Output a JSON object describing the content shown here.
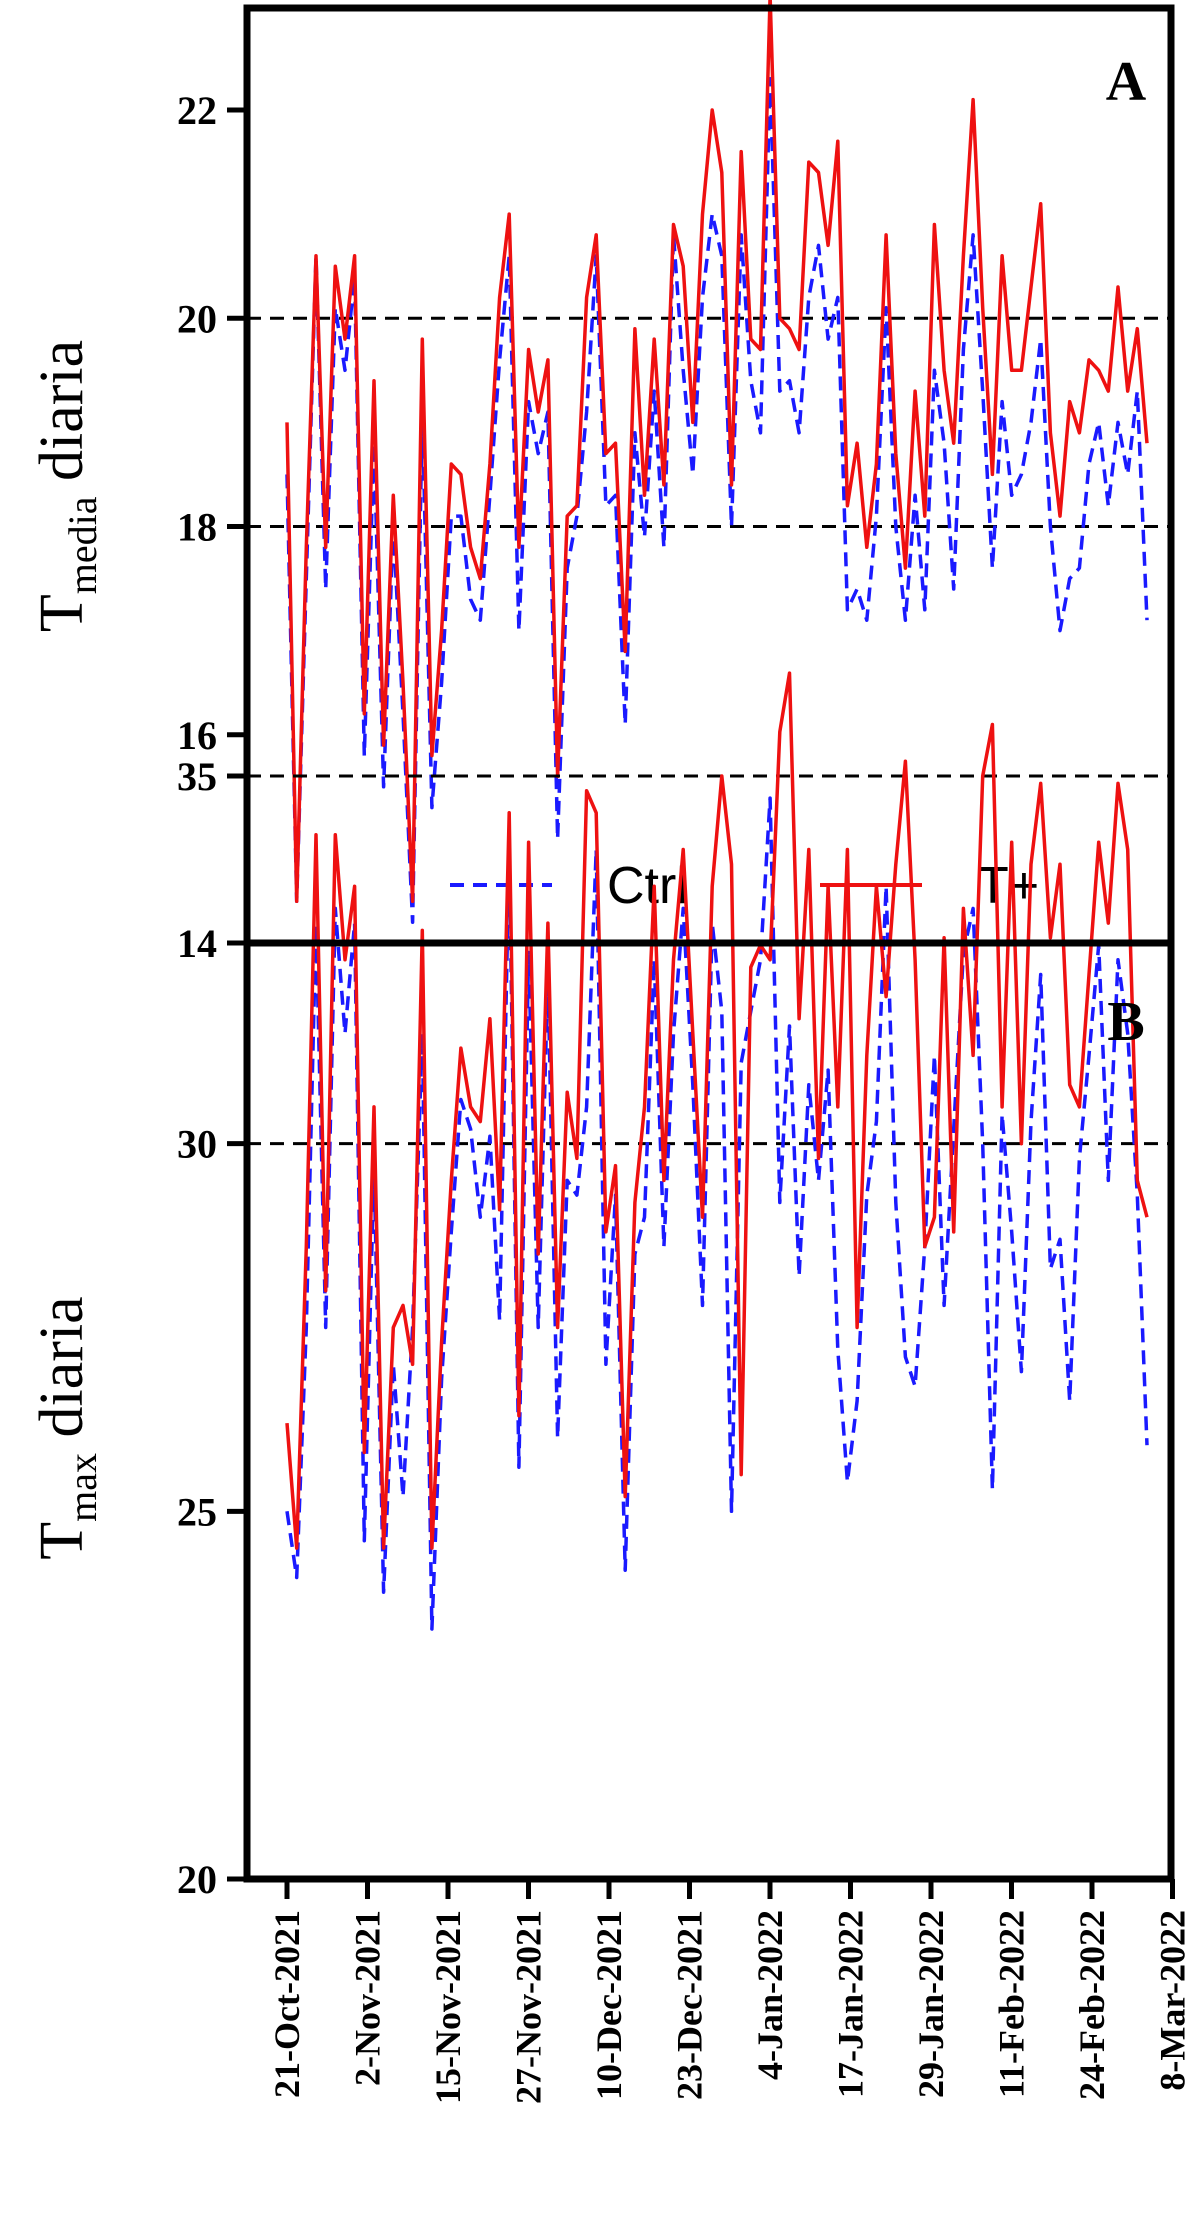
{
  "chart_data": [
    {
      "panel": "A",
      "type": "line",
      "ylabel": "T",
      "ylabel_sub": "media",
      "ylabel_rest": " diaria",
      "ylim": [
        14,
        23.5
      ],
      "yticks": [
        "14",
        "16",
        "18",
        "20",
        "22"
      ],
      "reference_lines": [
        18,
        20
      ],
      "legend": {
        "position": "bottom-center",
        "entries": [
          "Ctrl",
          "T+"
        ]
      },
      "series": [
        {
          "name": "Ctrl",
          "color": "#1a1aff",
          "style": "dashed",
          "values": [
            18.5,
            14.4,
            17.5,
            20.6,
            17.4,
            20.1,
            19.5,
            20.4,
            15.8,
            18.8,
            15.5,
            18,
            16.2,
            14.2,
            19.1,
            15.3,
            16.5,
            18.1,
            18.1,
            17.3,
            17.1,
            18.3,
            19.6,
            20.6,
            17,
            19.2,
            18.7,
            19.1,
            15,
            17.6,
            18.1,
            19.1,
            20.6,
            18.2,
            18.3,
            16.1,
            18.9,
            17.9,
            19.3,
            17.8,
            20.8,
            19.5,
            18.5,
            20.2,
            21,
            20.6,
            18,
            20.8,
            19.4,
            18.9,
            22.3,
            19.3,
            19.4,
            18.9,
            20.2,
            20.7,
            19.8,
            20.2,
            17.2,
            17.4,
            17.1,
            18.1,
            20.1,
            18,
            17.1,
            18.3,
            17.2,
            19.5,
            18.8,
            17.4,
            19.7,
            20.8,
            19.3,
            17.6,
            19.2,
            18.3,
            18.5,
            19,
            19.8,
            18,
            17,
            17.5,
            17.6,
            18.6,
            19,
            18.2,
            19,
            18.5,
            19.3,
            17.1
          ]
        },
        {
          "name": "T+",
          "color": "#ee1111",
          "style": "solid",
          "values": [
            19,
            14.4,
            17.8,
            20.6,
            17.8,
            20.5,
            19.8,
            20.6,
            16.2,
            19.4,
            15.9,
            18.3,
            16.5,
            14.4,
            19.8,
            15.8,
            17,
            18.6,
            18.5,
            17.8,
            17.5,
            18.6,
            20.2,
            21,
            17.8,
            19.7,
            19.1,
            19.6,
            15.6,
            18.1,
            18.2,
            20.2,
            20.8,
            18.7,
            18.8,
            16.8,
            19.9,
            18.3,
            19.8,
            18.4,
            20.9,
            20.5,
            19,
            21,
            22,
            21.4,
            18.4,
            21.6,
            19.8,
            19.7,
            23.1,
            20,
            19.9,
            19.7,
            21.5,
            21.4,
            20.7,
            21.7,
            18.2,
            18.8,
            17.8,
            18.6,
            20.8,
            18.7,
            17.6,
            19.3,
            18.1,
            20.9,
            19.5,
            18.8,
            20.6,
            22.1,
            20.1,
            18.5,
            20.6,
            19.5,
            19.5,
            20.3,
            21.1,
            18.9,
            18.1,
            19.2,
            18.9,
            19.6,
            19.5,
            19.3,
            20.3,
            19.3,
            19.9,
            18.8
          ]
        }
      ]
    },
    {
      "panel": "B",
      "type": "line",
      "ylabel": "T",
      "ylabel_sub": "max",
      "ylabel_rest": " diaria",
      "ylim": [
        20,
        37
      ],
      "yticks": [
        "20",
        "25",
        "30",
        "35"
      ],
      "reference_lines": [
        30,
        35
      ],
      "xticks": [
        "21-Oct-2021",
        "2-Nov-2021",
        "15-Nov-2021",
        "27-Nov-2021",
        "10-Dec-2021",
        "23-Dec-2021",
        "4-Jan-2022",
        "17-Jan-2022",
        "29-Jan-2022",
        "11-Feb-2022",
        "24-Feb-2022",
        "8-Mar-2022"
      ],
      "series": [
        {
          "name": "Ctrl",
          "color": "#1a1aff",
          "style": "dashed",
          "values": [
            25,
            24.1,
            27.5,
            33,
            27.5,
            33.2,
            31.5,
            33,
            24.6,
            29.7,
            23.9,
            27,
            25.2,
            27.5,
            31.5,
            23.4,
            26.8,
            28.8,
            30.6,
            30.2,
            29,
            30.1,
            27.6,
            34,
            25.6,
            32.6,
            27.5,
            32.3,
            26,
            29.5,
            29.3,
            30.5,
            34,
            27,
            29.3,
            24.2,
            28.5,
            29,
            32.5,
            28.6,
            31.5,
            33.2,
            30.8,
            27.8,
            33,
            31.8,
            25,
            31.1,
            31.8,
            32.5,
            34.7,
            29.2,
            31.6,
            28.2,
            30.8,
            29.5,
            31,
            27.2,
            25.4,
            26.5,
            29.3,
            30.3,
            33.5,
            29.2,
            27.1,
            26.7,
            28.6,
            31.2,
            27.8,
            30.2,
            32.6,
            33.2,
            30,
            25.3,
            30.4,
            28.8,
            26.9,
            30.3,
            32.3,
            28.3,
            28.7,
            26.5,
            29.8,
            31.2,
            32.7,
            29.5,
            32.5,
            31.5,
            29.3,
            25.9
          ]
        },
        {
          "name": "T+",
          "color": "#ee1111",
          "style": "solid",
          "values": [
            26.2,
            24.5,
            28.6,
            34.2,
            28,
            34.2,
            32.5,
            33.5,
            25.8,
            30.5,
            24.5,
            27.5,
            27.8,
            27,
            32.9,
            24.5,
            27.3,
            29.5,
            31.3,
            30.5,
            30.3,
            31.7,
            29.1,
            34.5,
            26.3,
            34.1,
            28.5,
            33,
            27.5,
            30.7,
            29.8,
            34.8,
            34.5,
            28.8,
            29.7,
            25.2,
            29.2,
            30.5,
            33.5,
            29.5,
            32.5,
            34,
            31.5,
            29,
            33.5,
            35,
            33.8,
            25.5,
            32.4,
            32.7,
            32.5,
            35.6,
            36.4,
            31.7,
            34,
            29.8,
            33.5,
            30.5,
            34,
            27.5,
            31.2,
            33.5,
            32,
            33.8,
            35.2,
            32.5,
            28.6,
            29,
            32.8,
            28.8,
            33.2,
            31.2,
            35,
            35.7,
            30.5,
            34.1,
            30,
            33.8,
            34.9,
            32.8,
            33.8,
            30.8,
            30.5,
            32.3,
            34.1,
            33,
            34.9,
            34,
            29.5,
            29
          ]
        }
      ]
    }
  ],
  "panels": {
    "a": {
      "letter": "A"
    },
    "b": {
      "letter": "B"
    }
  }
}
